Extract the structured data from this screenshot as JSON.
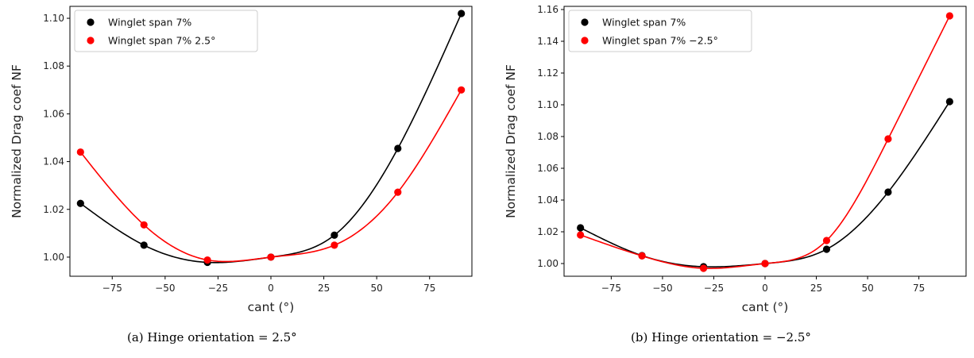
{
  "chart_data": [
    {
      "type": "scatter",
      "xlabel": "cant (°)",
      "ylabel": "Normalized Drag coef NF",
      "xlim": [
        -95,
        95
      ],
      "ylim": [
        0.992,
        1.105
      ],
      "xticks": [
        -75,
        -50,
        -25,
        0,
        25,
        50,
        75
      ],
      "yticks": [
        1.0,
        1.02,
        1.04,
        1.06,
        1.08,
        1.1
      ],
      "legend_position": "top-left",
      "grid": false,
      "caption": "(a) Hinge orientation = 2.5°",
      "series": [
        {
          "name": "Winglet span 7%",
          "color": "#000000",
          "x": [
            -90,
            -60,
            -30,
            0,
            30,
            60,
            90
          ],
          "y": [
            1.0225,
            1.005,
            0.9978,
            1.0,
            1.0092,
            1.0455,
            1.102
          ]
        },
        {
          "name": "Winglet span 7% 2.5°",
          "color": "#ff0000",
          "x": [
            -90,
            -60,
            -30,
            0,
            30,
            60,
            90
          ],
          "y": [
            1.044,
            1.0135,
            0.9988,
            1.0,
            1.005,
            1.0272,
            1.07
          ]
        }
      ]
    },
    {
      "type": "scatter",
      "xlabel": "cant (°)",
      "ylabel": "Normalized Drag coef NF",
      "xlim": [
        -98,
        98
      ],
      "ylim": [
        0.992,
        1.162
      ],
      "xticks": [
        -75,
        -50,
        -25,
        0,
        25,
        50,
        75
      ],
      "yticks": [
        1.0,
        1.02,
        1.04,
        1.06,
        1.08,
        1.1,
        1.12,
        1.14,
        1.16
      ],
      "legend_position": "top-left",
      "grid": false,
      "caption": "(b) Hinge orientation = −2.5°",
      "series": [
        {
          "name": "Winglet span 7%",
          "color": "#000000",
          "x": [
            -90,
            -60,
            -30,
            0,
            30,
            60,
            90
          ],
          "y": [
            1.0225,
            1.005,
            0.998,
            1.0,
            1.009,
            1.045,
            1.102
          ]
        },
        {
          "name": "Winglet span 7% −2.5°",
          "color": "#ff0000",
          "x": [
            -90,
            -60,
            -30,
            0,
            30,
            60,
            90
          ],
          "y": [
            1.018,
            1.0048,
            0.997,
            1.0,
            1.0145,
            1.0785,
            1.156
          ]
        }
      ]
    }
  ]
}
